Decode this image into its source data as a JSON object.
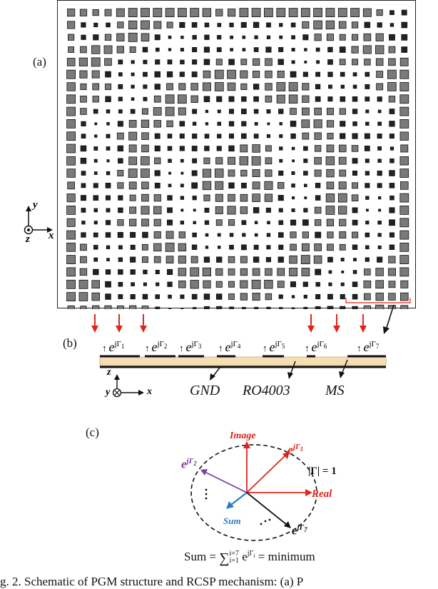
{
  "panel_labels": {
    "a": "(a)",
    "b": "(b)",
    "c": "(c)"
  },
  "axes_a": {
    "y": "y",
    "x": "x",
    "z": "z"
  },
  "axes_b": {
    "z": "z",
    "y": "y",
    "x": "x"
  },
  "cross_section": {
    "phase_base": "e",
    "phase_exp": "jΓ",
    "phase_indices": [
      "1",
      "2",
      "3",
      "4",
      "5",
      "6",
      "7"
    ],
    "materials": {
      "gnd": "GND",
      "substrate": "RO4003",
      "ms": "MS"
    },
    "colors": {
      "substrate": "#f5deb3",
      "arrow": "#e0241b"
    }
  },
  "phasor": {
    "image": "Image",
    "real": "Real",
    "sum": "Sum",
    "e1_base": "e",
    "e1_exp": "jΓ",
    "e1_sub": "1",
    "e2_base": "e",
    "e2_exp": "jΓ",
    "e2_sub": "2",
    "e7_base": "e",
    "e7_exp": "jΓ",
    "e7_sub": "7",
    "mag": "|Γ| = 1",
    "colors": {
      "red": "#e0241b",
      "purple": "#7b3fa0",
      "blue": "#2e7bbf",
      "black": "#111111"
    }
  },
  "formula": {
    "lhs": "Sum = ",
    "sigma": "∑",
    "upper": "i=7",
    "lower": "i=1",
    "term": " e",
    "term_exp": "jΓ",
    "term_sub": "i",
    "rhs": " = minimum"
  },
  "caption": "g. 2. Schematic of PGM structure and RCSP mechanism: (a) P"
}
